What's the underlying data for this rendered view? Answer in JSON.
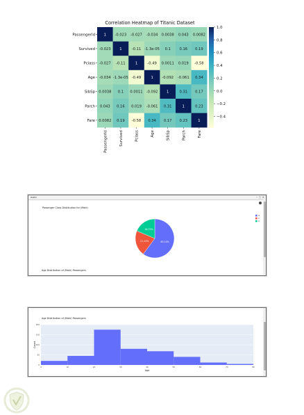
{
  "heatmap": {
    "title": "Correlation Heatmap of Titanic Dataset",
    "labels": [
      "PassengerId",
      "Survived",
      "Pclass",
      "Age",
      "SibSp",
      "Parch",
      "Fare"
    ],
    "cells": [
      [
        "1",
        "-0.023",
        "-0.027",
        "-0.034",
        "0.0038",
        "0.043",
        "0.0082"
      ],
      [
        "-0.023",
        "1",
        "-0.11",
        "-1.3e-05",
        "0.1",
        "0.16",
        "0.19"
      ],
      [
        "-0.027",
        "-0.11",
        "1",
        "-0.49",
        "0.0011",
        "0.019",
        "-0.58"
      ],
      [
        "-0.034",
        "-1.3e-05",
        "-0.49",
        "1",
        "-0.092",
        "-0.061",
        "0.34"
      ],
      [
        "0.0038",
        "0.1",
        "0.0011",
        "-0.092",
        "1",
        "0.31",
        "0.17"
      ],
      [
        "0.043",
        "0.16",
        "0.019",
        "-0.061",
        "0.31",
        "1",
        "0.23"
      ],
      [
        "0.0082",
        "0.19",
        "-0.58",
        "0.34",
        "0.17",
        "0.23",
        "1"
      ]
    ],
    "colorbar_ticks": [
      "1.0",
      "0.8",
      "0.6",
      "0.4",
      "0.2",
      "0.0",
      "−0.2",
      "−0.4"
    ],
    "colors": {
      "low": "#ffffd9",
      "mid": "#41b6c4",
      "high": "#081d58"
    }
  },
  "chart_data": [
    {
      "type": "heatmap",
      "title": "Correlation Heatmap of Titanic Dataset",
      "x": [
        "PassengerId",
        "Survived",
        "Pclass",
        "Age",
        "SibSp",
        "Parch",
        "Fare"
      ],
      "y": [
        "PassengerId",
        "Survived",
        "Pclass",
        "Age",
        "SibSp",
        "Parch",
        "Fare"
      ],
      "values": [
        [
          1,
          -0.023,
          -0.027,
          -0.034,
          0.0038,
          0.043,
          0.0082
        ],
        [
          -0.023,
          1,
          -0.11,
          -1.3e-05,
          0.1,
          0.16,
          0.19
        ],
        [
          -0.027,
          -0.11,
          1,
          -0.49,
          0.0011,
          0.019,
          -0.58
        ],
        [
          -0.034,
          -1.3e-05,
          -0.49,
          1,
          -0.092,
          -0.061,
          0.34
        ],
        [
          0.0038,
          0.1,
          0.0011,
          -0.092,
          1,
          0.31,
          0.17
        ],
        [
          0.043,
          0.16,
          0.019,
          -0.061,
          0.31,
          1,
          0.23
        ],
        [
          0.0082,
          0.19,
          -0.58,
          0.34,
          0.17,
          0.23,
          1
        ]
      ],
      "colorscale": "YlGnBu",
      "vmin": -0.58,
      "vmax": 1.0,
      "colorbar_ticks": [
        1.0,
        0.8,
        0.6,
        0.4,
        0.2,
        0.0,
        -0.2,
        -0.4
      ]
    },
    {
      "type": "pie",
      "title": "Passenger Class Distribution for (Male)",
      "labels": [
        "3",
        "1",
        "2"
      ],
      "values": [
        347,
        122,
        108
      ],
      "slice_labels": [
        "60.14%",
        "21.14%",
        "18.72%"
      ],
      "colors": [
        "#636efa",
        "#ef553b",
        "#00cc96"
      ],
      "legend_position": "top-right"
    },
    {
      "type": "bar",
      "title": "Age Distribution of (Male) Passengers",
      "xlabel": "Age",
      "ylabel": "Count",
      "categories": [
        "0-10",
        "10-20",
        "20-30",
        "30-40",
        "40-50",
        "50-60",
        "60-70",
        "70-80"
      ],
      "values": [
        20,
        45,
        175,
        80,
        68,
        40,
        12,
        5
      ],
      "ylim": [
        0,
        200
      ],
      "color": "#636efa",
      "grid": true
    }
  ],
  "window1": {
    "title": "main",
    "chart_title": "Passenger Class Distribution for (Male)",
    "next_title": "Age Distribution of (Male) Passengers",
    "legend": [
      "3",
      "1",
      "2"
    ],
    "slice_labels": [
      "60.14%",
      "21.14%",
      "18.72%"
    ]
  },
  "window2": {
    "chart_title": "Age Distribution of (Male) Passengers",
    "xlabel": "Age",
    "ylabel": "Count",
    "xticks": [
      "0",
      "10",
      "20",
      "30",
      "40",
      "50",
      "60",
      "70",
      "80"
    ],
    "yticks": [
      "0",
      "50",
      "100",
      "150",
      "200"
    ]
  }
}
